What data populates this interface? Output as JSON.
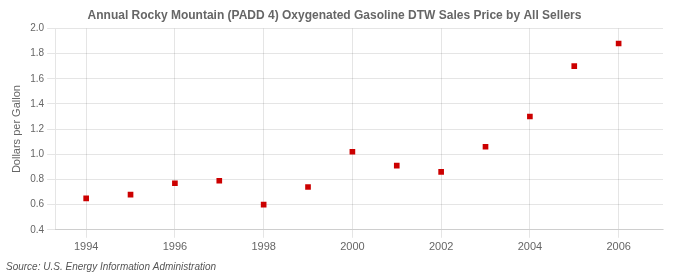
{
  "chart_data": {
    "type": "scatter",
    "title": "Annual Rocky Mountain (PADD 4) Oxygenated Gasoline DTW Sales Price by All Sellers",
    "ylabel": "Dollars per Gallon",
    "source": "Source: U.S. Energy Information Administration",
    "x": [
      1994,
      1995,
      1996,
      1997,
      1998,
      1999,
      2000,
      2001,
      2002,
      2003,
      2004,
      2005,
      2006
    ],
    "values": [
      0.65,
      0.68,
      0.77,
      0.79,
      0.6,
      0.74,
      1.02,
      0.91,
      0.86,
      1.06,
      1.3,
      1.7,
      1.88
    ],
    "color": "#cc0000",
    "marker": "square",
    "xlim": [
      1993.3,
      2007.0
    ],
    "xticks": [
      1994,
      1996,
      1998,
      2000,
      2002,
      2004,
      2006
    ],
    "ylim": [
      0.4,
      2.0
    ],
    "yticks": [
      0.4,
      0.6,
      0.8,
      {
        "value": 1.0,
        "label": "1.0"
      },
      1.2,
      1.4,
      1.6,
      1.8,
      {
        "value": 2.0,
        "label": "2.0"
      }
    ],
    "grid": true
  }
}
